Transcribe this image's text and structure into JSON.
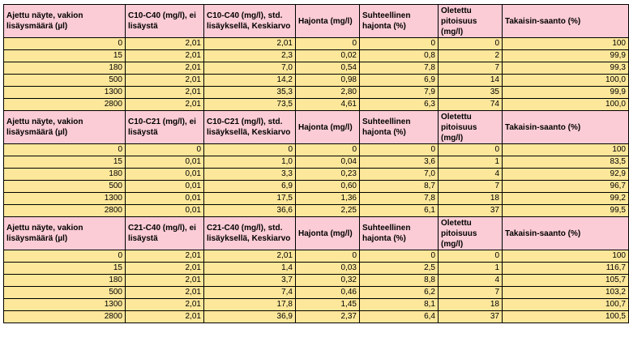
{
  "sections": [
    {
      "headers": [
        "Ajettu näyte, vakion lisäysmäärä (µl)",
        "C10-C40 (mg/l), ei lisäystä",
        "C10-C40 (mg/l), std. lisäyksellä, Keskiarvo",
        "Hajonta (mg/l)",
        "Suhteellinen hajonta (%)",
        "Oletettu pitoisuus (mg/l)",
        "Takaisin-saanto (%)"
      ],
      "rows": [
        [
          "0",
          "2,01",
          "2,01",
          "0",
          "0",
          "0",
          "100"
        ],
        [
          "15",
          "2,01",
          "2,3",
          "0,02",
          "0,8",
          "2",
          "99,9"
        ],
        [
          "180",
          "2,01",
          "7,0",
          "0,54",
          "7,8",
          "7",
          "99,3"
        ],
        [
          "500",
          "2,01",
          "14,2",
          "0,98",
          "6,9",
          "14",
          "100,0"
        ],
        [
          "1300",
          "2,01",
          "35,3",
          "2,80",
          "7,9",
          "35",
          "99,9"
        ],
        [
          "2800",
          "2,01",
          "73,5",
          "4,61",
          "6,3",
          "74",
          "100,0"
        ]
      ]
    },
    {
      "headers": [
        "Ajettu näyte, vakion lisäysmäärä (µl)",
        "C10-C21 (mg/l), ei lisäystä",
        "C10-C21 (mg/l), std. lisäyksellä, Keskiarvo",
        "Hajonta (mg/l)",
        "Suhteellinen hajonta (%)",
        "Oletettu pitoisuus (mg/l)",
        "Takaisin-saanto (%)"
      ],
      "rows": [
        [
          "0",
          "0",
          "0",
          "0",
          "0",
          "0",
          "100"
        ],
        [
          "15",
          "0,01",
          "1,0",
          "0,04",
          "3,6",
          "1",
          "83,5"
        ],
        [
          "180",
          "0,01",
          "3,3",
          "0,23",
          "7,0",
          "4",
          "92,9"
        ],
        [
          "500",
          "0,01",
          "6,9",
          "0,60",
          "8,7",
          "7",
          "96,7"
        ],
        [
          "1300",
          "0,01",
          "17,5",
          "1,36",
          "7,8",
          "18",
          "99,2"
        ],
        [
          "2800",
          "0,01",
          "36,6",
          "2,25",
          "6,1",
          "37",
          "99,5"
        ]
      ]
    },
    {
      "headers": [
        "Ajettu näyte, vakion lisäysmäärä (µl)",
        "C21-C40 (mg/l), ei lisäystä",
        "C21-C40 (mg/l), std. lisäyksellä, Keskiarvo",
        "Hajonta (mg/l)",
        "Suhteellinen hajonta (%)",
        "Oletettu pitoisuus (mg/l)",
        "Takaisin-saanto (%)"
      ],
      "rows": [
        [
          "0",
          "2,01",
          "2,01",
          "0",
          "0",
          "0",
          "100"
        ],
        [
          "15",
          "2,01",
          "1,4",
          "0,03",
          "2,5",
          "1",
          "116,7"
        ],
        [
          "180",
          "2,01",
          "3,7",
          "0,32",
          "8,8",
          "4",
          "105,7"
        ],
        [
          "500",
          "2,01",
          "7,4",
          "0,46",
          "6,2",
          "7",
          "103,2"
        ],
        [
          "1300",
          "2,01",
          "17,8",
          "1,45",
          "8,1",
          "18",
          "100,7"
        ],
        [
          "2800",
          "2,01",
          "36,9",
          "2,37",
          "6,4",
          "37",
          "100,5"
        ]
      ]
    }
  ],
  "colors": {
    "header_bg": "#fbccd6",
    "row_bg": "#fde79a",
    "border": "#000000"
  }
}
